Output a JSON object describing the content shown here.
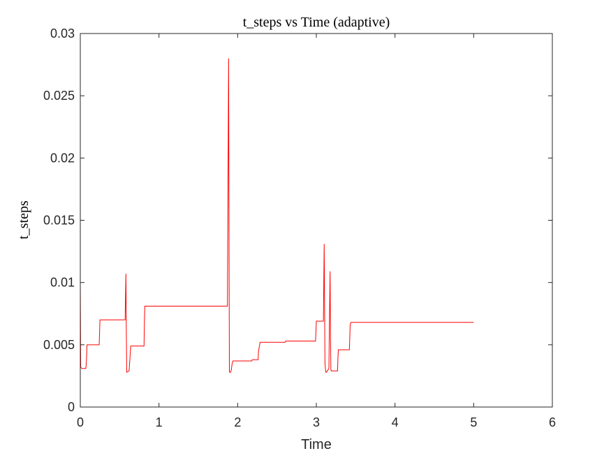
{
  "chart_data": {
    "type": "line",
    "title": "t_steps vs Time (adaptive)",
    "xlabel": "Time",
    "ylabel": "t_steps",
    "xlim": [
      0,
      6
    ],
    "ylim": [
      0,
      0.03
    ],
    "x_ticks": [
      "0",
      "1",
      "2",
      "3",
      "4",
      "5",
      "6"
    ],
    "y_ticks": [
      "0",
      "0.005",
      "0.01",
      "0.015",
      "0.02",
      "0.025",
      "0.03"
    ],
    "grid": false,
    "line_color": "#ff0000",
    "series": [
      {
        "x": [
          0.0,
          0.005,
          0.02,
          0.07,
          0.075,
          0.08,
          0.085,
          0.24,
          0.245,
          0.25,
          0.57,
          0.575,
          0.58,
          0.585,
          0.59,
          0.62,
          0.63,
          0.64,
          0.81,
          0.815,
          0.82,
          1.87,
          1.875,
          1.885,
          1.89,
          1.895,
          1.91,
          1.92,
          1.93,
          1.94,
          2.18,
          2.185,
          2.26,
          2.265,
          2.28,
          2.285,
          2.6,
          2.605,
          2.61,
          2.99,
          2.995,
          3.0,
          3.005,
          3.09,
          3.095,
          3.1,
          3.105,
          3.11,
          3.12,
          3.13,
          3.16,
          3.165,
          3.175,
          3.18,
          3.185,
          3.19,
          3.27,
          3.275,
          3.28,
          3.285,
          3.42,
          3.425,
          3.43,
          3.44,
          5.0
        ],
        "y": [
          0.0101,
          0.0032,
          0.0031,
          0.0031,
          0.0034,
          0.004,
          0.005,
          0.005,
          0.006,
          0.007,
          0.007,
          0.009,
          0.0107,
          0.006,
          0.0028,
          0.0029,
          0.0038,
          0.0049,
          0.0049,
          0.007,
          0.0081,
          0.0081,
          0.015,
          0.028,
          0.015,
          0.0028,
          0.0028,
          0.003,
          0.0035,
          0.0037,
          0.0037,
          0.0038,
          0.0038,
          0.0045,
          0.005,
          0.0052,
          0.0052,
          0.0052,
          0.0053,
          0.0053,
          0.006,
          0.0069,
          0.0069,
          0.0069,
          0.01,
          0.0131,
          0.008,
          0.0035,
          0.0028,
          0.0028,
          0.0031,
          0.006,
          0.0109,
          0.006,
          0.003,
          0.0029,
          0.0029,
          0.004,
          0.0046,
          0.0046,
          0.0046,
          0.0055,
          0.0066,
          0.0068,
          0.0068
        ]
      }
    ]
  }
}
